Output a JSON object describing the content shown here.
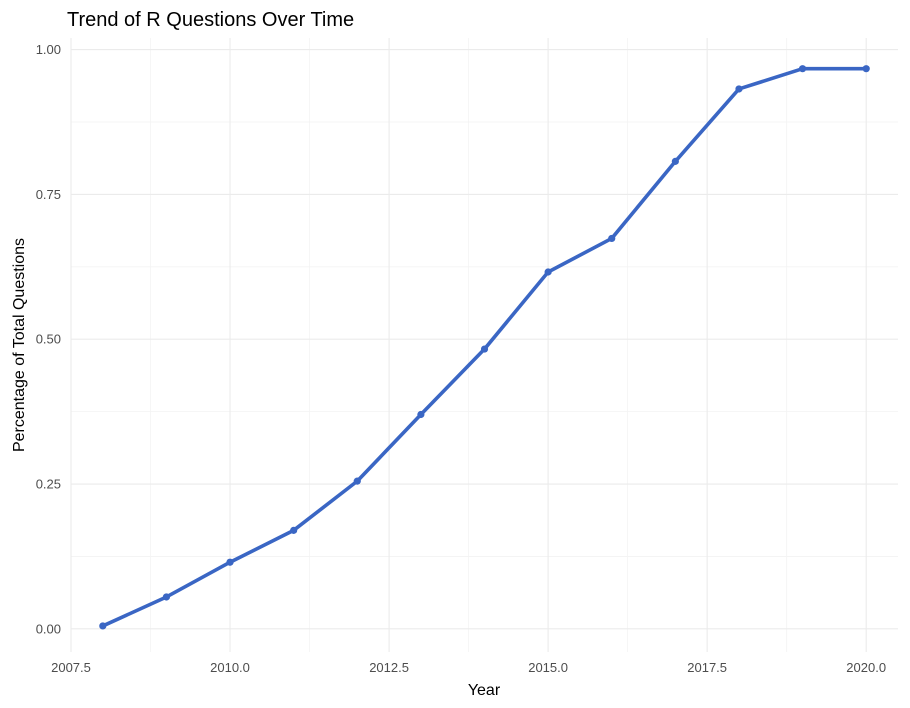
{
  "chart_data": {
    "type": "line",
    "title": "Trend of R Questions Over Time",
    "xlabel": "Year",
    "ylabel": "Percentage of Total Questions",
    "xlim": [
      2007.5,
      2020.5
    ],
    "ylim": [
      -0.04,
      1.02
    ],
    "x_ticks": [
      2007.5,
      2010.0,
      2012.5,
      2015.0,
      2017.5,
      2020.0
    ],
    "x_tick_labels": [
      "2007.5",
      "2010.0",
      "2012.5",
      "2015.0",
      "2017.5",
      "2020.0"
    ],
    "y_ticks": [
      0.0,
      0.25,
      0.5,
      0.75,
      1.0
    ],
    "y_tick_labels": [
      "0.00",
      "0.25",
      "0.50",
      "0.75",
      "1.00"
    ],
    "grid": true,
    "legend": "none",
    "color": "#3a66c4",
    "series": [
      {
        "x": [
          2008,
          2009,
          2010,
          2011,
          2012,
          2013,
          2014,
          2015,
          2016,
          2017,
          2018,
          2019,
          2020
        ],
        "values": [
          0.005,
          0.055,
          0.115,
          0.17,
          0.255,
          0.37,
          0.483,
          0.616,
          0.674,
          0.807,
          0.932,
          0.967,
          0.967
        ]
      }
    ]
  }
}
